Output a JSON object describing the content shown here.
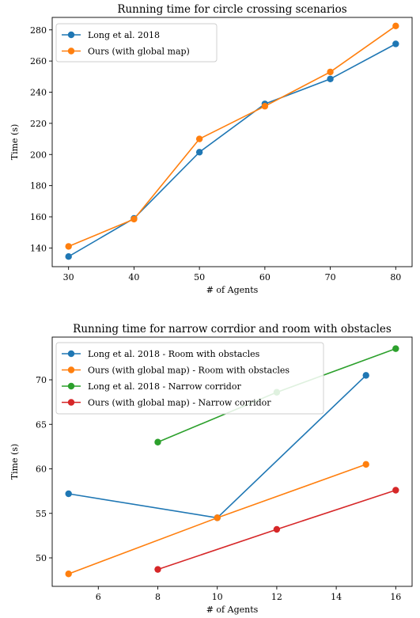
{
  "chart_data": [
    {
      "type": "line",
      "title": "Running time for circle crossing scenarios",
      "xlabel": "# of Agents",
      "ylabel": "Time (s)",
      "xlim": [
        27.5,
        82.5
      ],
      "ylim": [
        128,
        288
      ],
      "xticks": [
        30,
        40,
        50,
        60,
        70,
        80
      ],
      "yticks": [
        140,
        160,
        180,
        200,
        220,
        240,
        260,
        280
      ],
      "legend_position": "upper-left",
      "grid": false,
      "series": [
        {
          "name": "Long et al. 2018",
          "color": "#1f77b4",
          "x": [
            30,
            40,
            50,
            60,
            70,
            80
          ],
          "y": [
            134.5,
            159,
            201.5,
            232.5,
            248.5,
            271
          ]
        },
        {
          "name": "Ours (with global map)",
          "color": "#ff7f0e",
          "x": [
            30,
            40,
            50,
            60,
            70,
            80
          ],
          "y": [
            141,
            158.5,
            210,
            231,
            253,
            282.5
          ]
        }
      ]
    },
    {
      "type": "line",
      "title": "Running time for narrow corrdior and room with obstacles",
      "xlabel": "# of Agents",
      "ylabel": "Time (s)",
      "xlim": [
        4.45,
        16.55
      ],
      "ylim": [
        46.8,
        74.8
      ],
      "xticks": [
        6,
        8,
        10,
        12,
        14,
        16
      ],
      "yticks": [
        50,
        55,
        60,
        65,
        70
      ],
      "legend_position": "upper-left",
      "grid": false,
      "series": [
        {
          "name": "Long et al. 2018 - Room with obstacles",
          "color": "#1f77b4",
          "x": [
            5,
            10,
            15
          ],
          "y": [
            57.2,
            54.5,
            70.5
          ]
        },
        {
          "name": "Ours (with global map) - Room with obstacles",
          "color": "#ff7f0e",
          "x": [
            5,
            10,
            15
          ],
          "y": [
            48.2,
            54.5,
            60.5
          ]
        },
        {
          "name": "Long et al. 2018 - Narrow corridor",
          "color": "#2ca02c",
          "x": [
            8,
            12,
            16
          ],
          "y": [
            63,
            68.6,
            73.5
          ]
        },
        {
          "name": "Ours (with global map) - Narrow corridor",
          "color": "#d62728",
          "x": [
            8,
            12,
            16
          ],
          "y": [
            48.7,
            53.2,
            57.6
          ]
        }
      ]
    }
  ]
}
